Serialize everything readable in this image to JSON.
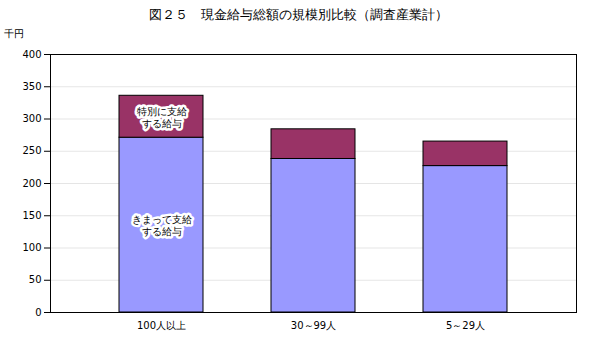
{
  "chart_data": {
    "type": "bar",
    "title": "図２５　現金給与総額の規模別比較（調査産業計）",
    "y_label": "千円",
    "categories": [
      "100人以上",
      "30～99人",
      "5～29人"
    ],
    "series": [
      {
        "name": "きまって支給する給与",
        "color": "#9999ff",
        "values": [
          271,
          238,
          227
        ]
      },
      {
        "name": "特別に支給する給与",
        "color": "#993366",
        "values": [
          65,
          46,
          38
        ]
      }
    ],
    "stacked": true,
    "ylim": [
      0,
      400
    ],
    "yticks": [
      0,
      50,
      100,
      150,
      200,
      250,
      300,
      350,
      400
    ],
    "grid": true
  }
}
